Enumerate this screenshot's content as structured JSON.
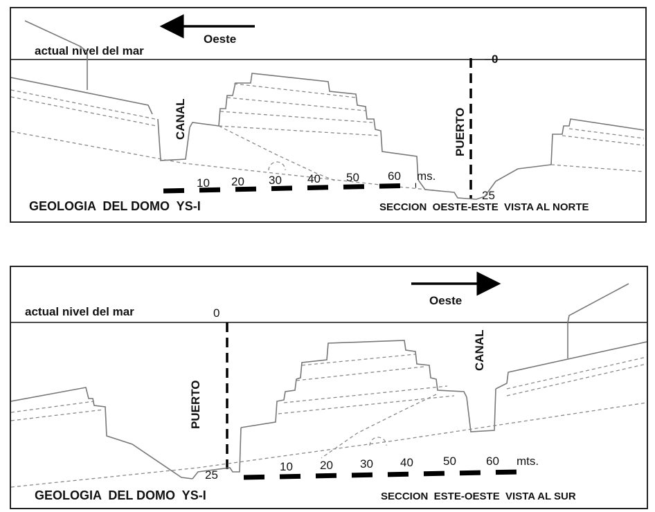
{
  "top": {
    "direction_label": "Oeste",
    "sea_level_label": "actual nivel del mar",
    "depth_zero": "0",
    "depth_bottom": "25",
    "canal_label": "CANAL",
    "puerto_label": "PUERTO",
    "scale_ticks": [
      "10",
      "20",
      "30",
      "40",
      "50",
      "60"
    ],
    "scale_unit": "ms.",
    "title": "GEOLOGIA  DEL DOMO  YS-I",
    "section": "SECCION  OESTE-ESTE  VISTA AL NORTE"
  },
  "bottom": {
    "direction_label": "Oeste",
    "sea_level_label": "actual nivel del mar",
    "depth_zero": "0",
    "depth_bottom": "25",
    "canal_label": "CANAL",
    "puerto_label": "PUERTO",
    "scale_ticks": [
      "10",
      "20",
      "30",
      "40",
      "50",
      "60"
    ],
    "scale_unit": "mts.",
    "title": "GEOLOGIA  DEL DOMO  YS-I",
    "section": "SECCION  ESTE-OESTE  VISTA AL SUR"
  }
}
